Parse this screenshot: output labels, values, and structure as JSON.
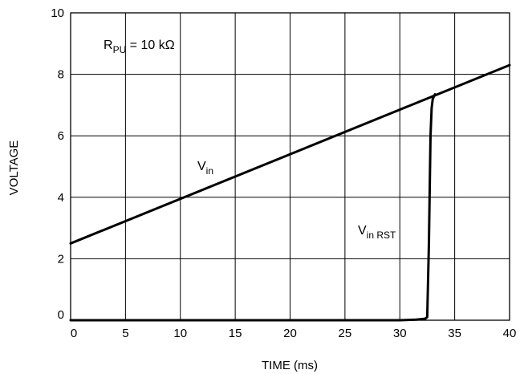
{
  "chart_data": {
    "type": "line",
    "title": "",
    "xlabel": "TIME (ms)",
    "ylabel": "VOLTAGE",
    "xlim": [
      0,
      40
    ],
    "ylim": [
      0,
      10
    ],
    "xticks": [
      "0",
      "5",
      "10",
      "15",
      "20",
      "25",
      "30",
      "35",
      "40"
    ],
    "yticks": [
      "0",
      "2",
      "4",
      "6",
      "8",
      "10"
    ],
    "grid": true,
    "annotations": [
      {
        "main": "R",
        "sub": "PU",
        "rest": " = 10 kΩ"
      }
    ],
    "series": [
      {
        "name": "Vin",
        "label_main": "V",
        "label_sub": "in",
        "x": [
          0,
          40
        ],
        "y": [
          2.5,
          8.3
        ]
      },
      {
        "name": "Vin RST",
        "label_main": "V",
        "label_sub": "in RST",
        "x": [
          0,
          30,
          31.5,
          32.3,
          32.5,
          32.65,
          32.8,
          32.9,
          33.0,
          33.2
        ],
        "y": [
          0,
          0,
          0.02,
          0.05,
          0.1,
          2.5,
          6.0,
          6.9,
          7.2,
          7.35
        ]
      }
    ]
  }
}
